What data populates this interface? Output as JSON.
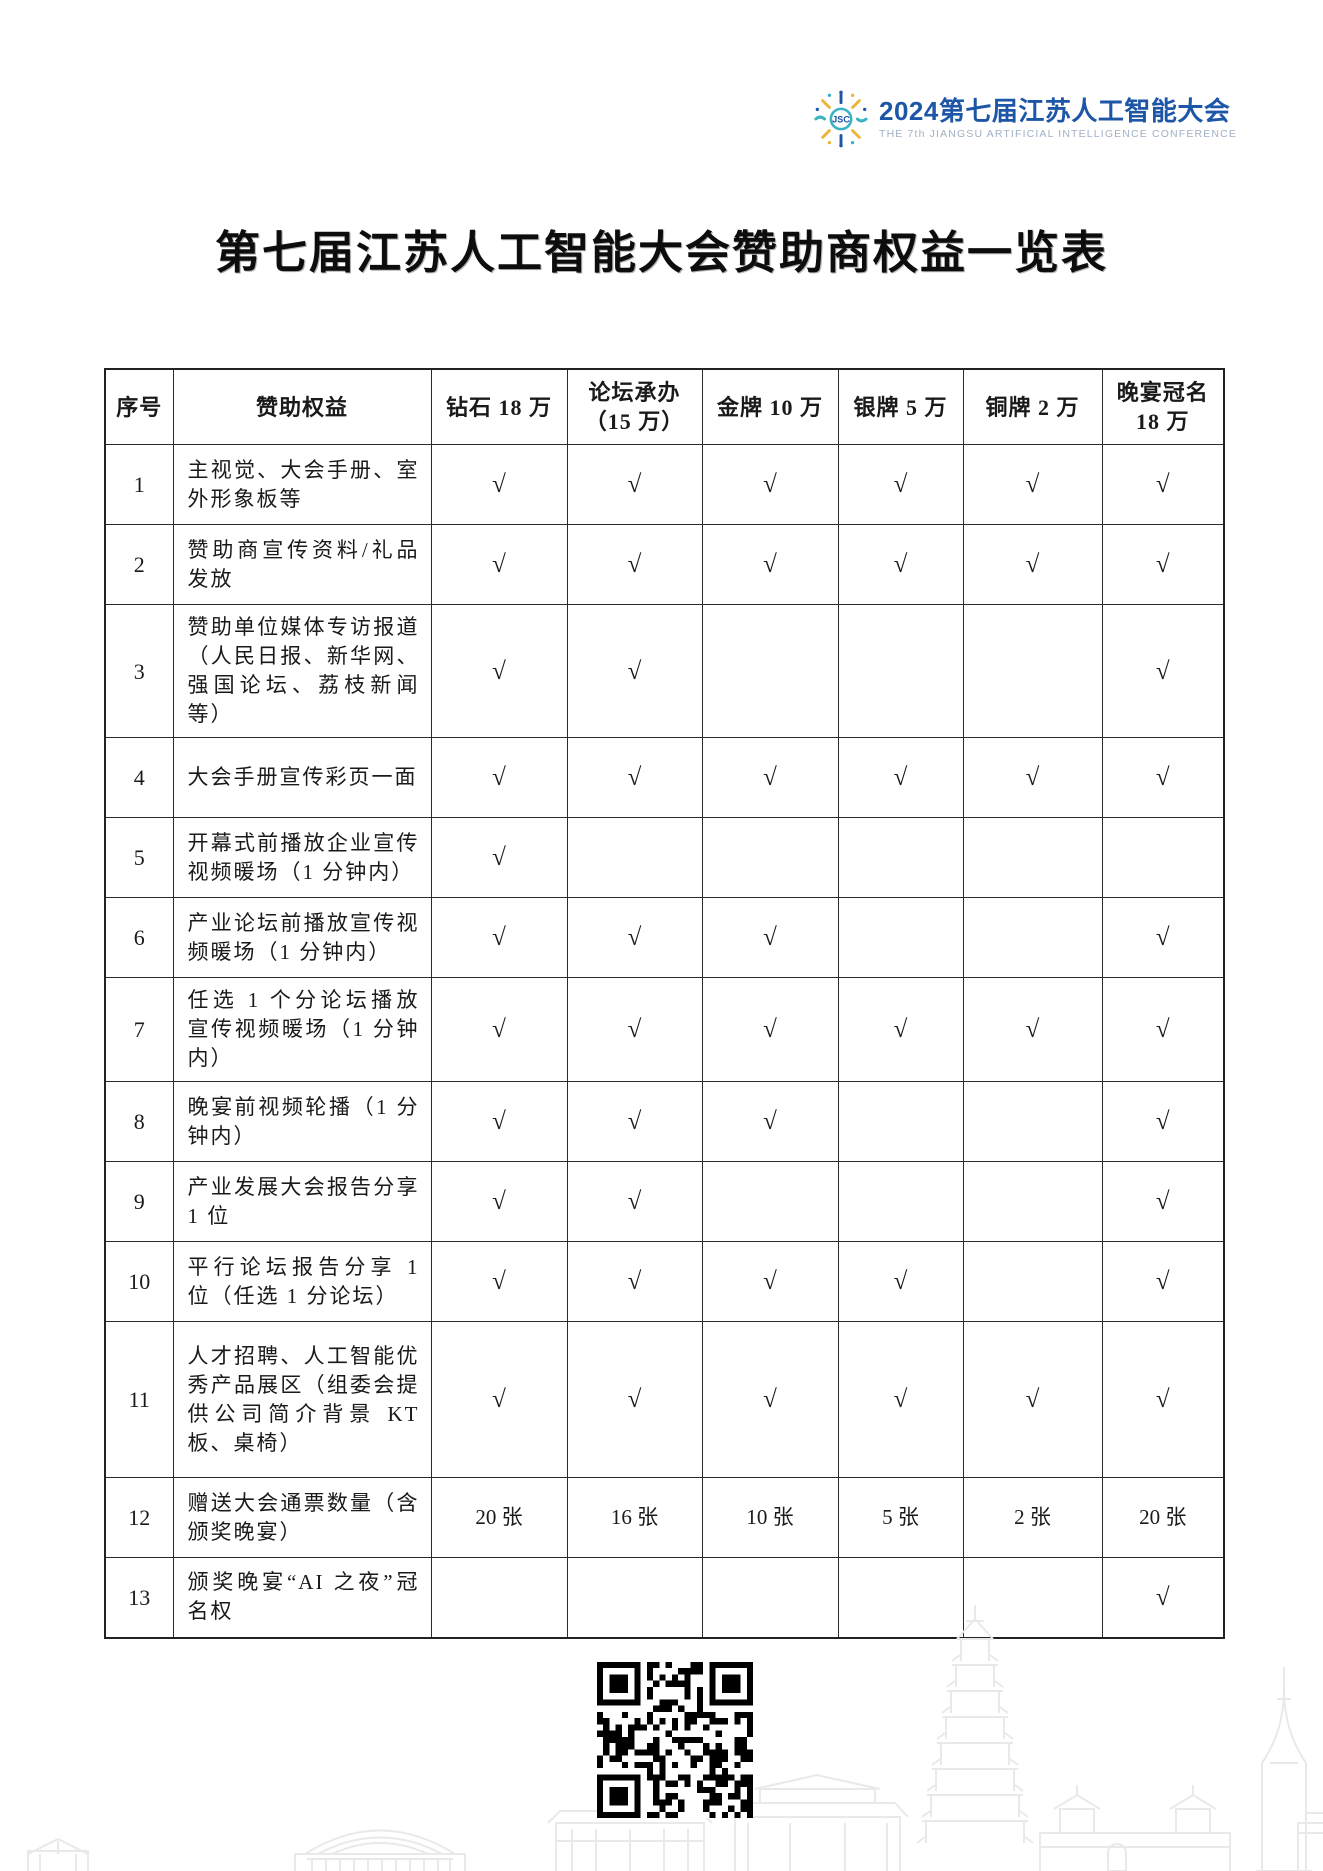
{
  "logo": {
    "icon": "jsc-starburst-icon",
    "title": "2024第七届江苏人工智能大会",
    "subtitle": "THE 7th JIANGSU ARTIFICIAL INTELLIGENCE CONFERENCE",
    "colors": {
      "blue": "#1d55a7",
      "teal": "#38b2c4",
      "yellow": "#ecb537"
    }
  },
  "page_title": "第七届江苏人工智能大会赞助商权益一览表",
  "table": {
    "columns": [
      "序号",
      "赞助权益",
      "钻石 18 万",
      "论坛承办\n（15 万）",
      "金牌 10 万",
      "银牌 5 万",
      "铜牌 2 万",
      "晚宴冠名\n18 万"
    ],
    "check_symbol": "√",
    "rows": [
      {
        "no": "1",
        "benefit": "主视觉、大会手册、室外形象板等",
        "cells": [
          "√",
          "√",
          "√",
          "√",
          "√",
          "√"
        ]
      },
      {
        "no": "2",
        "benefit": "赞助商宣传资料/礼品发放",
        "cells": [
          "√",
          "√",
          "√",
          "√",
          "√",
          "√"
        ]
      },
      {
        "no": "3",
        "benefit": "赞助单位媒体专访报道（人民日报、新华网、强国论坛、荔枝新闻等）",
        "cells": [
          "√",
          "√",
          "",
          "",
          "",
          "√"
        ]
      },
      {
        "no": "4",
        "benefit": "大会手册宣传彩页一面",
        "cells": [
          "√",
          "√",
          "√",
          "√",
          "√",
          "√"
        ]
      },
      {
        "no": "5",
        "benefit": "开幕式前播放企业宣传视频暖场（1 分钟内）",
        "cells": [
          "√",
          "",
          "",
          "",
          "",
          ""
        ]
      },
      {
        "no": "6",
        "benefit": "产业论坛前播放宣传视频暖场（1 分钟内）",
        "cells": [
          "√",
          "√",
          "√",
          "",
          "",
          "√"
        ]
      },
      {
        "no": "7",
        "benefit": "任选 1 个分论坛播放宣传视频暖场（1 分钟内）",
        "cells": [
          "√",
          "√",
          "√",
          "√",
          "√",
          "√"
        ]
      },
      {
        "no": "8",
        "benefit": "晚宴前视频轮播（1 分钟内）",
        "cells": [
          "√",
          "√",
          "√",
          "",
          "",
          "√"
        ]
      },
      {
        "no": "9",
        "benefit": "产业发展大会报告分享 1 位",
        "cells": [
          "√",
          "√",
          "",
          "",
          "",
          "√"
        ]
      },
      {
        "no": "10",
        "benefit": "平行论坛报告分享 1 位（任选 1 分论坛）",
        "cells": [
          "√",
          "√",
          "√",
          "√",
          "",
          "√"
        ]
      },
      {
        "no": "11",
        "benefit": "人才招聘、人工智能优秀产品展区（组委会提供公司简介背景 KT 板、桌椅）",
        "cells": [
          "√",
          "√",
          "√",
          "√",
          "√",
          "√"
        ]
      },
      {
        "no": "12",
        "benefit": "赠送大会通票数量（含颁奖晚宴）",
        "cells": [
          "20 张",
          "16 张",
          "10 张",
          "5 张",
          "2 张",
          "20 张"
        ]
      },
      {
        "no": "13",
        "benefit": "颁奖晚宴“AI 之夜”冠名权",
        "cells": [
          "",
          "",
          "",
          "",
          "",
          "√"
        ]
      }
    ]
  }
}
